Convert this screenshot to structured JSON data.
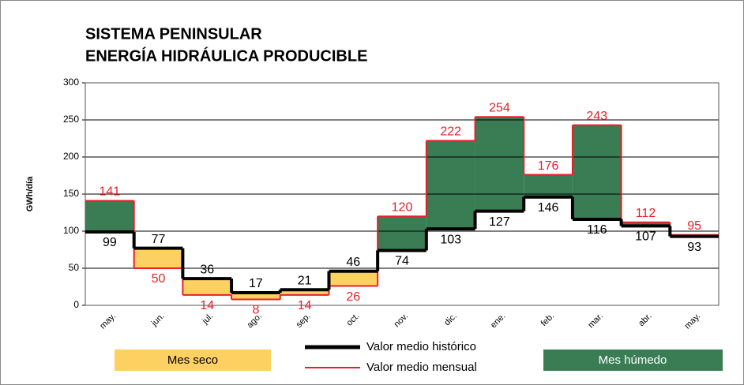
{
  "chart_data": {
    "type": "step",
    "title": [
      "SISTEMA PENINSULAR",
      "ENERGÍA HIDRÁULICA PRODUCIBLE"
    ],
    "y_label": "GWh/día",
    "categories": [
      "may.",
      "jun.",
      "jul.",
      "ago.",
      "sep.",
      "oct.",
      "nov.",
      "dic.",
      "ene.",
      "feb.",
      "mar.",
      "abr.",
      "may."
    ],
    "series": [
      {
        "name": "Valor medio histórico",
        "color": "#000000",
        "values": [
          99,
          77,
          36,
          17,
          21,
          46,
          74,
          103,
          127,
          146,
          116,
          107,
          93
        ]
      },
      {
        "name": "Valor medio mensual",
        "color": "#e8202a",
        "values": [
          141,
          50,
          14,
          8,
          14,
          26,
          120,
          222,
          254,
          176,
          243,
          112,
          95
        ]
      }
    ],
    "fill_legend": [
      {
        "label": "Mes seco",
        "color": "#fdd062"
      },
      {
        "label": "Mes húmedo",
        "color": "#3a7d55"
      }
    ],
    "ylim": [
      0,
      300
    ],
    "yticks": [
      0,
      50,
      100,
      150,
      200,
      250,
      300
    ],
    "grid": true
  }
}
